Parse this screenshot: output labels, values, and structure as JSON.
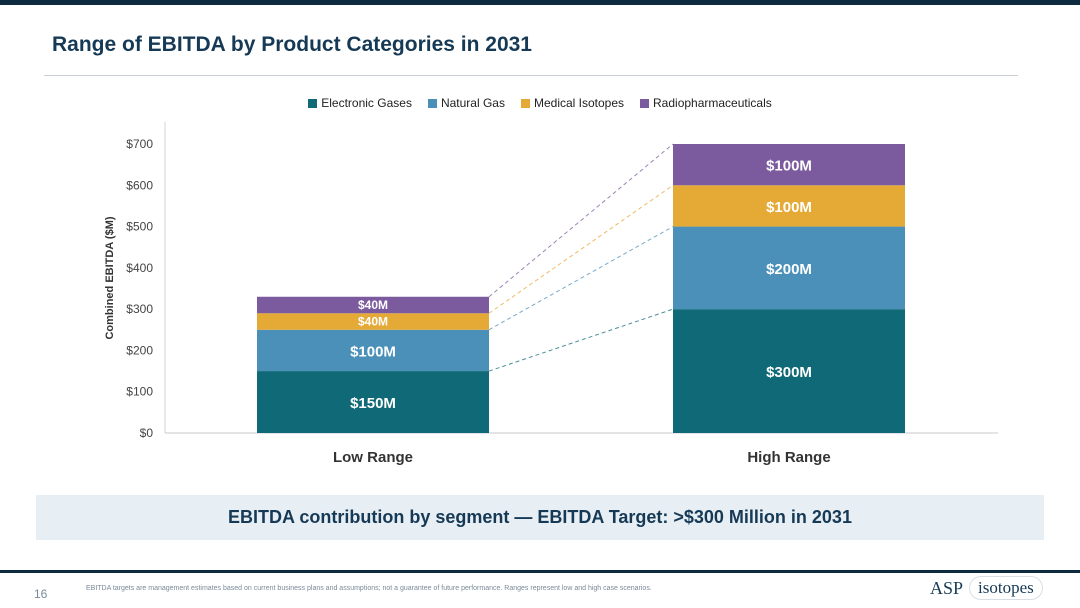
{
  "slide": {
    "title": "Range of EBITDA by Product Categories in 2031",
    "banner": "EBITDA contribution by segment — EBITDA Target: >$300 Million in 2031",
    "footnote": "EBITDA targets are management estimates based on current business plans and assumptions; not a guarantee of future performance. Ranges represent low and high case scenarios.",
    "page_number": "16",
    "logo_main": "ASP",
    "logo_sub": "isotopes"
  },
  "chart_data": {
    "type": "bar",
    "stacked": true,
    "categories": [
      "Low Range",
      "High Range"
    ],
    "ylabel": "Combined EBITDA ($M)",
    "ylim": [
      0,
      700
    ],
    "yticks": [
      "$0",
      "$100",
      "$200",
      "$300",
      "$400",
      "$500",
      "$600",
      "$700"
    ],
    "legend_position": "top",
    "grid": false,
    "connector_lines": "dashed",
    "series": [
      {
        "name": "Electronic Gases",
        "color": "#0f6977",
        "values": [
          150,
          300
        ],
        "labels": [
          "$150M",
          "$300M"
        ]
      },
      {
        "name": "Natural Gas",
        "color": "#4a90b8",
        "values": [
          100,
          200
        ],
        "labels": [
          "$100M",
          "$200M"
        ]
      },
      {
        "name": "Medical Isotopes",
        "color": "#e5a935",
        "values": [
          40,
          100
        ],
        "labels": [
          "$40M",
          "$100M"
        ]
      },
      {
        "name": "Radiopharmaceuticals",
        "color": "#7b5b9e",
        "values": [
          40,
          100
        ],
        "labels": [
          "$40M",
          "$100M"
        ]
      }
    ]
  }
}
